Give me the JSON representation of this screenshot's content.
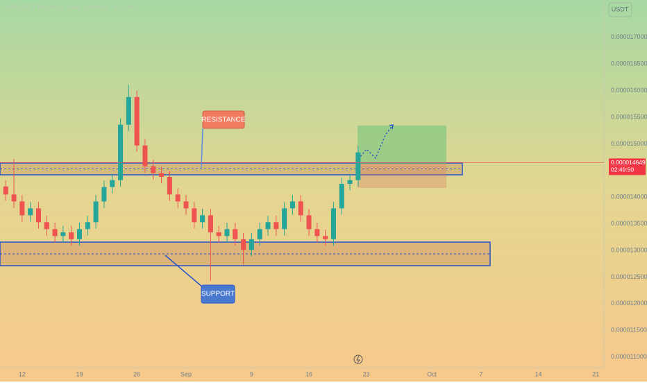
{
  "chart_data": {
    "type": "candlestick",
    "title": "SHIBUSDT Perpetual Swap Contract · 4h · OKX",
    "currency": "USDT",
    "x": [
      -2,
      -1,
      0,
      1,
      2,
      3,
      4,
      5,
      6,
      7,
      8,
      9,
      10,
      11,
      12,
      13,
      14,
      15,
      16,
      17,
      18,
      19,
      20,
      21,
      22,
      23,
      24,
      25,
      26,
      27,
      28,
      29,
      30,
      31,
      32,
      33,
      34,
      35,
      36,
      37,
      38,
      39,
      40,
      41
    ],
    "open": [
      1.42e-05,
      1.405e-05,
      1.392e-05,
      1.366e-05,
      1.379e-05,
      1.353e-05,
      1.34e-05,
      1.327e-05,
      1.334e-05,
      1.321e-05,
      1.34e-05,
      1.353e-05,
      1.392e-05,
      1.419e-05,
      1.432e-05,
      1.536e-05,
      1.588e-05,
      1.497e-05,
      1.458e-05,
      1.445e-05,
      1.438e-05,
      1.405e-05,
      1.392e-05,
      1.379e-05,
      1.353e-05,
      1.366e-05,
      1.334e-05,
      1.327e-05,
      1.34e-05,
      1.321e-05,
      1.301e-05,
      1.321e-05,
      1.34e-05,
      1.353e-05,
      1.34e-05,
      1.379e-05,
      1.392e-05,
      1.366e-05,
      1.34e-05,
      1.327e-05,
      1.321e-05,
      1.379e-05,
      1.425e-05,
      1.432e-05
    ],
    "high": [
      1.432e-05,
      1.472e-05,
      1.404e-05,
      1.391e-05,
      1.391e-05,
      1.365e-05,
      1.352e-05,
      1.346e-05,
      1.346e-05,
      1.352e-05,
      1.365e-05,
      1.404e-05,
      1.431e-05,
      1.444e-05,
      1.548e-05,
      1.611e-05,
      1.6e-05,
      1.509e-05,
      1.47e-05,
      1.457e-05,
      1.45e-05,
      1.417e-05,
      1.404e-05,
      1.391e-05,
      1.378e-05,
      1.378e-05,
      1.346e-05,
      1.352e-05,
      1.352e-05,
      1.333e-05,
      1.333e-05,
      1.352e-05,
      1.365e-05,
      1.365e-05,
      1.391e-05,
      1.404e-05,
      1.404e-05,
      1.378e-05,
      1.352e-05,
      1.339e-05,
      1.391e-05,
      1.437e-05,
      1.444e-05,
      1.497e-05
    ],
    "low": [
      1.393e-05,
      1.38e-05,
      1.354e-05,
      1.354e-05,
      1.341e-05,
      1.328e-05,
      1.315e-05,
      1.315e-05,
      1.309e-05,
      1.309e-05,
      1.328e-05,
      1.341e-05,
      1.38e-05,
      1.407e-05,
      1.42e-05,
      1.524e-05,
      1.485e-05,
      1.446e-05,
      1.433e-05,
      1.426e-05,
      1.393e-05,
      1.38e-05,
      1.367e-05,
      1.341e-05,
      1.341e-05,
      1.243e-05,
      1.315e-05,
      1.315e-05,
      1.309e-05,
      1.273e-05,
      1.289e-05,
      1.309e-05,
      1.328e-05,
      1.328e-05,
      1.328e-05,
      1.367e-05,
      1.354e-05,
      1.328e-05,
      1.315e-05,
      1.309e-05,
      1.309e-05,
      1.367e-05,
      1.413e-05,
      1.42e-05
    ],
    "close": [
      1.405e-05,
      1.392e-05,
      1.366e-05,
      1.379e-05,
      1.353e-05,
      1.34e-05,
      1.327e-05,
      1.334e-05,
      1.321e-05,
      1.34e-05,
      1.353e-05,
      1.392e-05,
      1.419e-05,
      1.432e-05,
      1.536e-05,
      1.588e-05,
      1.497e-05,
      1.458e-05,
      1.445e-05,
      1.438e-05,
      1.405e-05,
      1.392e-05,
      1.379e-05,
      1.353e-05,
      1.366e-05,
      1.334e-05,
      1.327e-05,
      1.34e-05,
      1.321e-05,
      1.301e-05,
      1.321e-05,
      1.34e-05,
      1.353e-05,
      1.34e-05,
      1.379e-05,
      1.392e-05,
      1.366e-05,
      1.34e-05,
      1.327e-05,
      1.321e-05,
      1.379e-05,
      1.425e-05,
      1.432e-05,
      1.484e-05
    ],
    "up_color": "#26a69a",
    "down_color": "#ef5350",
    "xlim": [
      -2.7,
      71
    ],
    "xticks": [
      {
        "value": 0,
        "label": "12"
      },
      {
        "value": 7,
        "label": "19"
      },
      {
        "value": 14,
        "label": "26"
      },
      {
        "value": 20,
        "label": "Sep"
      },
      {
        "value": 28,
        "label": "9"
      },
      {
        "value": 35,
        "label": "16"
      },
      {
        "value": 42,
        "label": "23"
      },
      {
        "value": 50,
        "label": "Oct"
      },
      {
        "value": 56,
        "label": "7"
      },
      {
        "value": 63,
        "label": "14"
      },
      {
        "value": 70,
        "label": "21"
      }
    ],
    "ylim": [
      1.08e-05,
      1.77e-05
    ],
    "yticks": [
      {
        "value": 1.1e-05,
        "label": "0.0000110000"
      },
      {
        "value": 1.15e-05,
        "label": "0.0000115000"
      },
      {
        "value": 1.2e-05,
        "label": "0.0000120000"
      },
      {
        "value": 1.25e-05,
        "label": "0.0000125000"
      },
      {
        "value": 1.3e-05,
        "label": "0.0000130000"
      },
      {
        "value": 1.35e-05,
        "label": "0.0000135000"
      },
      {
        "value": 1.4e-05,
        "label": "0.0000140000"
      },
      {
        "value": 1.5e-05,
        "label": "0.0000150000"
      },
      {
        "value": 1.55e-05,
        "label": "0.0000155000"
      },
      {
        "value": 1.6e-05,
        "label": "0.0000160000"
      },
      {
        "value": 1.65e-05,
        "label": "0.0000165000"
      },
      {
        "value": 1.7e-05,
        "label": "0.0000170000"
      }
    ],
    "last_price": 1.4649e-05,
    "countdown": "02:49:50",
    "annotations": [
      "RESISTANCE",
      "SUPPORT"
    ]
  }
}
